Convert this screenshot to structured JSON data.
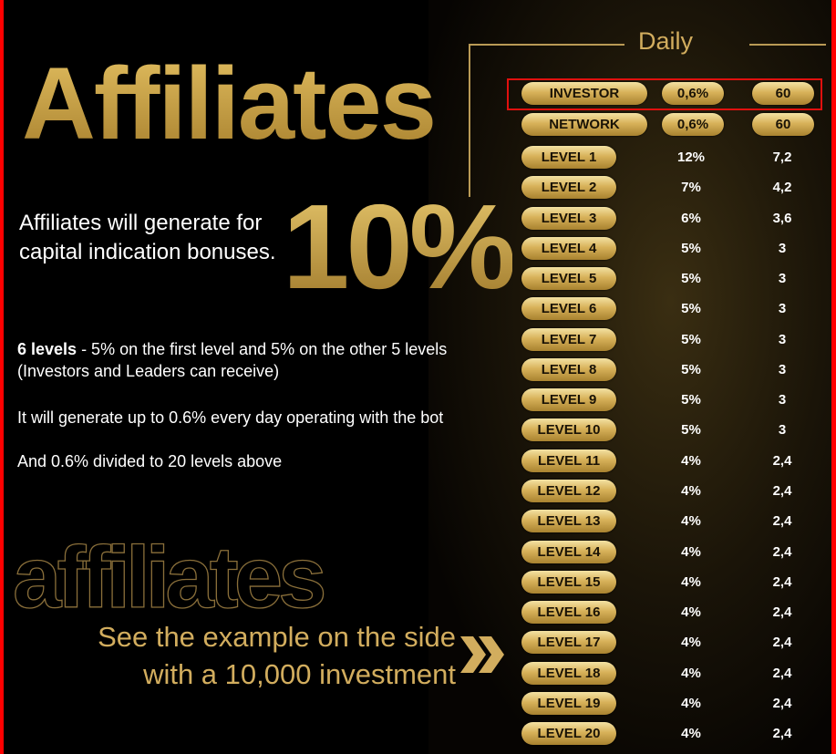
{
  "title": "Affiliates",
  "big_percent": "10%",
  "intro": "Affiliates will generate for capital indication bonuses.",
  "levels_bold": "6 levels",
  "levels_text": " - 5% on the first level and 5% on the other 5 levels (Investors and Leaders can receive)",
  "daily_note": "It will generate up to 0.6% every day operating with the bot",
  "network_note": "And 0.6% divided to 20 levels above",
  "outline_word": "affiliates",
  "example_line1": "See the example on the side",
  "example_line2": "with a 10,000 investment",
  "arrow_icon": "double-chevron-right",
  "table": {
    "header": "Daily",
    "highlighted_row": "INVESTOR",
    "highlight_color": "#e0100e",
    "accent_color": "#d2ad5e",
    "top_rows": [
      {
        "label": "INVESTOR",
        "percent": "0,6%",
        "amount": "60"
      },
      {
        "label": "NETWORK",
        "percent": "0,6%",
        "amount": "60"
      }
    ],
    "levels": [
      {
        "label": "LEVEL 1",
        "percent": "12%",
        "amount": "7,2"
      },
      {
        "label": "LEVEL 2",
        "percent": "7%",
        "amount": "4,2"
      },
      {
        "label": "LEVEL 3",
        "percent": "6%",
        "amount": "3,6"
      },
      {
        "label": "LEVEL 4",
        "percent": "5%",
        "amount": "3"
      },
      {
        "label": "LEVEL 5",
        "percent": "5%",
        "amount": "3"
      },
      {
        "label": "LEVEL 6",
        "percent": "5%",
        "amount": "3"
      },
      {
        "label": "LEVEL 7",
        "percent": "5%",
        "amount": "3"
      },
      {
        "label": "LEVEL 8",
        "percent": "5%",
        "amount": "3"
      },
      {
        "label": "LEVEL 9",
        "percent": "5%",
        "amount": "3"
      },
      {
        "label": "LEVEL 10",
        "percent": "5%",
        "amount": "3"
      },
      {
        "label": "LEVEL 11",
        "percent": "4%",
        "amount": "2,4"
      },
      {
        "label": "LEVEL 12",
        "percent": "4%",
        "amount": "2,4"
      },
      {
        "label": "LEVEL 13",
        "percent": "4%",
        "amount": "2,4"
      },
      {
        "label": "LEVEL 14",
        "percent": "4%",
        "amount": "2,4"
      },
      {
        "label": "LEVEL 15",
        "percent": "4%",
        "amount": "2,4"
      },
      {
        "label": "LEVEL 16",
        "percent": "4%",
        "amount": "2,4"
      },
      {
        "label": "LEVEL 17",
        "percent": "4%",
        "amount": "2,4"
      },
      {
        "label": "LEVEL 18",
        "percent": "4%",
        "amount": "2,4"
      },
      {
        "label": "LEVEL 19",
        "percent": "4%",
        "amount": "2,4"
      },
      {
        "label": "LEVEL 20",
        "percent": "4%",
        "amount": "2,4"
      }
    ]
  }
}
